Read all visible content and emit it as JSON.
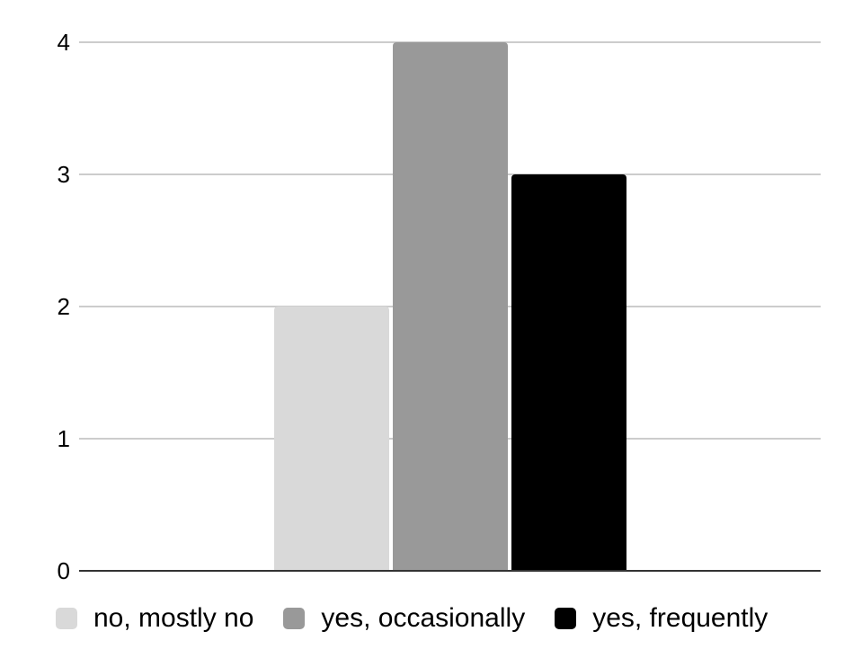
{
  "chart_data": {
    "type": "bar",
    "title": "",
    "xlabel": "",
    "ylabel": "",
    "series": [
      {
        "name": "no, mostly no",
        "value": 2,
        "color": "#d9d9d9"
      },
      {
        "name": "yes, occasionally",
        "value": 4,
        "color": "#999999"
      },
      {
        "name": "yes, frequently",
        "value": 3,
        "color": "#000000"
      }
    ],
    "y_axis": {
      "min": 0,
      "max": 4,
      "tick_interval": 1,
      "tick_labels": [
        "0",
        "1",
        "2",
        "3",
        "4"
      ]
    },
    "grid": true,
    "legend_position": "bottom",
    "colors": {
      "background": "#ffffff",
      "gridline": "#cccccc",
      "axis_line": "#333333",
      "label_text": "#000000"
    }
  }
}
